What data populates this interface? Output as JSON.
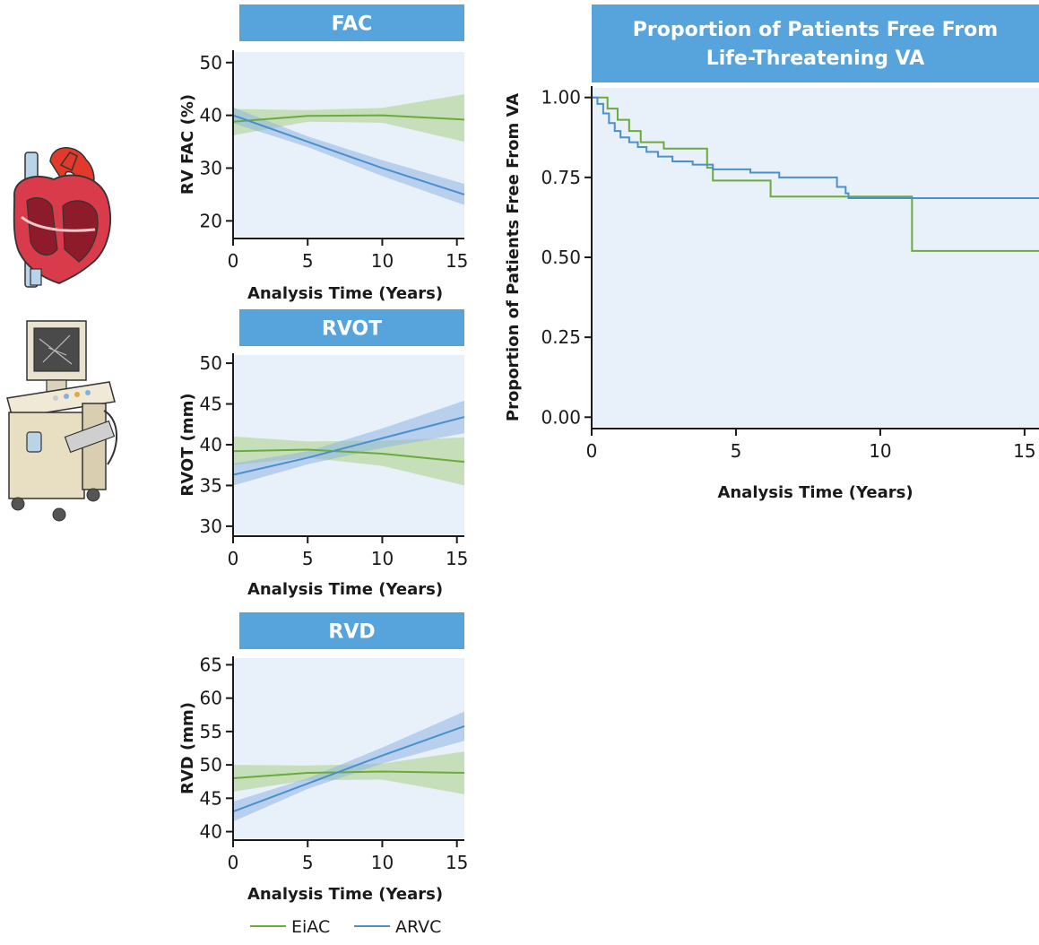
{
  "colors": {
    "eiac": "#6aac3c",
    "arvc": "#4a90cc",
    "eiac_band": "#a9cf85",
    "arvc_band": "#8fb7e3",
    "plot_bg": "#e8f0f9",
    "title_bar": "#57a4dc"
  },
  "legend": {
    "eiac": "EiAC",
    "arvc": "ARVC"
  },
  "icons": [
    "heart-anatomy-icon",
    "echocardiography-machine-icon",
    "defibrillator-icon"
  ],
  "chart_data": [
    {
      "type": "line",
      "title": "FAC",
      "xlabel": "Analysis Time (Years)",
      "ylabel": "RV FAC (%)",
      "xlim": [
        0,
        15.5
      ],
      "ylim": [
        17,
        52
      ],
      "xticks": [
        0,
        5,
        10,
        15
      ],
      "yticks": [
        20,
        30,
        40,
        50
      ],
      "grid": false,
      "series": [
        {
          "name": "EiAC",
          "x": [
            0,
            5,
            10,
            15.5
          ],
          "values": [
            38.8,
            39.9,
            40.0,
            39.2
          ],
          "lower": [
            36.2,
            38.8,
            38.6,
            35.0
          ],
          "upper": [
            41.2,
            41.0,
            41.4,
            44.0
          ]
        },
        {
          "name": "ARVC",
          "x": [
            0,
            5,
            10,
            15.5
          ],
          "values": [
            40.0,
            35.0,
            30.0,
            25.0
          ],
          "lower": [
            38.5,
            34.0,
            28.5,
            23.0
          ],
          "upper": [
            41.5,
            36.0,
            31.5,
            27.0
          ]
        }
      ]
    },
    {
      "type": "line",
      "title": "RVOT",
      "xlabel": "Analysis Time (Years)",
      "ylabel": "RVOT (mm)",
      "xlim": [
        0,
        15.5
      ],
      "ylim": [
        29,
        51
      ],
      "xticks": [
        0,
        5,
        10,
        15
      ],
      "yticks": [
        30,
        35,
        40,
        45,
        50
      ],
      "grid": false,
      "series": [
        {
          "name": "EiAC",
          "x": [
            0,
            5,
            10,
            15.5
          ],
          "values": [
            39.2,
            39.4,
            38.9,
            37.9
          ],
          "lower": [
            37.5,
            38.4,
            37.4,
            35.0
          ],
          "upper": [
            41.0,
            40.4,
            40.5,
            40.9
          ]
        },
        {
          "name": "ARVC",
          "x": [
            0,
            5,
            10,
            15.5
          ],
          "values": [
            36.3,
            38.4,
            40.8,
            43.4
          ],
          "lower": [
            35.0,
            37.6,
            39.6,
            41.4
          ],
          "upper": [
            37.7,
            39.2,
            42.0,
            45.4
          ]
        }
      ]
    },
    {
      "type": "line",
      "title": "RVD",
      "xlabel": "Analysis Time (Years)",
      "ylabel": "RVD (mm)",
      "xlim": [
        0,
        15.5
      ],
      "ylim": [
        39,
        66
      ],
      "xticks": [
        0,
        5,
        10,
        15
      ],
      "yticks": [
        40,
        45,
        50,
        55,
        60,
        65
      ],
      "grid": false,
      "series": [
        {
          "name": "EiAC",
          "x": [
            0,
            5,
            10,
            15.5
          ],
          "values": [
            48.0,
            48.8,
            49.0,
            48.8
          ],
          "lower": [
            46.0,
            47.7,
            47.8,
            45.6
          ],
          "upper": [
            50.0,
            49.9,
            50.2,
            52.0
          ]
        },
        {
          "name": "ARVC",
          "x": [
            0,
            5,
            10,
            15.5
          ],
          "values": [
            43.0,
            47.2,
            51.4,
            55.8
          ],
          "lower": [
            41.5,
            46.4,
            50.2,
            53.6
          ],
          "upper": [
            44.5,
            48.0,
            52.6,
            58.0
          ]
        }
      ]
    },
    {
      "type": "line",
      "title": "Proportion of Patients Free From Life-Threatening VA",
      "xlabel": "Analysis Time (Years)",
      "ylabel": "Proportion of Patients Free From VA",
      "xlim": [
        0,
        15.5
      ],
      "ylim": [
        -0.03,
        1.03
      ],
      "xticks": [
        0,
        5,
        10,
        15
      ],
      "yticks": [
        "0.00",
        "0.25",
        "0.50",
        "0.75",
        "1.00"
      ],
      "grid": false,
      "series": [
        {
          "name": "EiAC",
          "step": true,
          "x": [
            0,
            0.55,
            0.55,
            0.9,
            0.9,
            1.3,
            1.3,
            1.7,
            1.7,
            2.5,
            2.5,
            4.0,
            4.0,
            4.2,
            4.2,
            6.2,
            6.2,
            11.1,
            11.1,
            15.5
          ],
          "values": [
            1.0,
            1.0,
            0.965,
            0.965,
            0.93,
            0.93,
            0.895,
            0.895,
            0.86,
            0.86,
            0.84,
            0.84,
            0.78,
            0.78,
            0.74,
            0.74,
            0.69,
            0.69,
            0.52,
            0.52
          ]
        },
        {
          "name": "ARVC",
          "step": true,
          "x": [
            0,
            0.2,
            0.2,
            0.4,
            0.4,
            0.6,
            0.6,
            0.8,
            0.8,
            1.0,
            1.0,
            1.3,
            1.3,
            1.6,
            1.6,
            1.9,
            1.9,
            2.3,
            2.3,
            2.8,
            2.8,
            3.5,
            3.5,
            4.2,
            4.2,
            5.5,
            5.5,
            6.5,
            6.5,
            8.5,
            8.5,
            8.8,
            8.8,
            8.9,
            8.9,
            15.5
          ],
          "values": [
            1.0,
            1.0,
            0.98,
            0.98,
            0.95,
            0.95,
            0.92,
            0.92,
            0.895,
            0.895,
            0.875,
            0.875,
            0.86,
            0.86,
            0.845,
            0.845,
            0.83,
            0.83,
            0.815,
            0.815,
            0.8,
            0.8,
            0.79,
            0.79,
            0.775,
            0.775,
            0.765,
            0.765,
            0.75,
            0.75,
            0.72,
            0.72,
            0.7,
            0.7,
            0.685,
            0.685
          ]
        }
      ]
    }
  ]
}
